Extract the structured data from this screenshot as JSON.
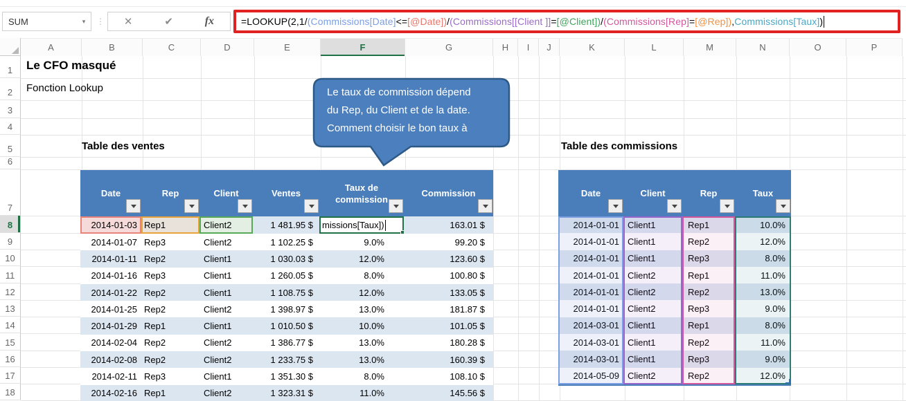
{
  "app": {
    "accent_green": "#217346",
    "header_blue": "#4A7EBA",
    "band_blue": "#DCE6F1",
    "annotation_red": "#E02322",
    "callout_blue": "#4C7FBE"
  },
  "formula_bar": {
    "name_box_value": "SUM",
    "name_box_arrow": "▾",
    "cancel_icon": "✕",
    "enter_icon": "✔",
    "insert_function_label": "fx",
    "dots_icon": "⋮",
    "segments": [
      {
        "text": "=LOOKUP(2,1/",
        "color": "#000000"
      },
      {
        "text": "(Commissions[Date]",
        "color": "#7A9FE5"
      },
      {
        "text": "<=",
        "color": "#000000"
      },
      {
        "text": "[@Date])",
        "color": "#E8776B"
      },
      {
        "text": "/",
        "color": "#000000"
      },
      {
        "text": "(Commissions[[Client ]]",
        "color": "#9C6BC9"
      },
      {
        "text": "=",
        "color": "#000000"
      },
      {
        "text": "[@Client])",
        "color": "#3FA45C"
      },
      {
        "text": "/",
        "color": "#000000"
      },
      {
        "text": "(Commissions[Rep]",
        "color": "#D4569E"
      },
      {
        "text": "=",
        "color": "#000000"
      },
      {
        "text": "[@Rep])",
        "color": "#F09241"
      },
      {
        "text": ",",
        "color": "#000000"
      },
      {
        "text": "Commissions[Taux]",
        "color": "#4BA6C5"
      },
      {
        "text": ")",
        "color": "#000000"
      }
    ]
  },
  "grid": {
    "column_headers": [
      "A",
      "B",
      "C",
      "D",
      "E",
      "F",
      "G",
      "H",
      "I",
      "J",
      "K",
      "L",
      "M",
      "N",
      "O",
      "P"
    ],
    "row_headers": [
      "1",
      "2",
      "3",
      "4",
      "5",
      "6",
      "7",
      "8",
      "9",
      "10",
      "11",
      "12",
      "13",
      "14",
      "15",
      "16",
      "17",
      "18"
    ],
    "selected_column": "F",
    "selected_row": "8"
  },
  "titles": {
    "line1": "Le CFO masqué",
    "line2": "Fonction Lookup"
  },
  "callout": {
    "lines": [
      "Le taux de commission dépend",
      "du Rep, du Client et de la date.",
      "Comment choisir le bon taux à"
    ]
  },
  "sales_table": {
    "title": "Table des ventes",
    "headers": [
      "Date",
      "Rep",
      "Client",
      "Ventes",
      "Taux de commission",
      "Commission"
    ],
    "edit_row": {
      "date": "2014-01-03",
      "rep": "Rep1",
      "client": "Client2",
      "ventes": "1 481.95 $",
      "taux_edit": "missions[Taux])",
      "commission": "163.01 $"
    },
    "rows": [
      {
        "date": "2014-01-07",
        "rep": "Rep3",
        "client": "Client2",
        "ventes": "1 102.25 $",
        "taux": "9.0%",
        "commission": "99.20 $"
      },
      {
        "date": "2014-01-11",
        "rep": "Rep2",
        "client": "Client1",
        "ventes": "1 030.03 $",
        "taux": "12.0%",
        "commission": "123.60 $"
      },
      {
        "date": "2014-01-16",
        "rep": "Rep3",
        "client": "Client1",
        "ventes": "1 260.05 $",
        "taux": "8.0%",
        "commission": "100.80 $"
      },
      {
        "date": "2014-01-22",
        "rep": "Rep2",
        "client": "Client1",
        "ventes": "1 108.75 $",
        "taux": "12.0%",
        "commission": "133.05 $"
      },
      {
        "date": "2014-01-25",
        "rep": "Rep2",
        "client": "Client2",
        "ventes": "1 398.97 $",
        "taux": "13.0%",
        "commission": "181.87 $"
      },
      {
        "date": "2014-01-29",
        "rep": "Rep1",
        "client": "Client1",
        "ventes": "1 010.50 $",
        "taux": "10.0%",
        "commission": "101.05 $"
      },
      {
        "date": "2014-02-04",
        "rep": "Rep2",
        "client": "Client2",
        "ventes": "1 386.77 $",
        "taux": "13.0%",
        "commission": "180.28 $"
      },
      {
        "date": "2014-02-08",
        "rep": "Rep2",
        "client": "Client2",
        "ventes": "1 233.75 $",
        "taux": "13.0%",
        "commission": "160.39 $"
      },
      {
        "date": "2014-02-11",
        "rep": "Rep3",
        "client": "Client1",
        "ventes": "1 351.30 $",
        "taux": "8.0%",
        "commission": "108.10 $"
      },
      {
        "date": "2014-02-16",
        "rep": "Rep1",
        "client": "Client2",
        "ventes": "1 323.31 $",
        "taux": "11.0%",
        "commission": "145.56 $"
      }
    ]
  },
  "commissions_table": {
    "title": "Table des commissions",
    "headers": [
      "Date",
      "Client",
      "Rep",
      "Taux"
    ],
    "rows": [
      {
        "date": "2014-01-01",
        "client": "Client1",
        "rep": "Rep1",
        "taux": "10.0%"
      },
      {
        "date": "2014-01-01",
        "client": "Client1",
        "rep": "Rep2",
        "taux": "12.0%"
      },
      {
        "date": "2014-01-01",
        "client": "Client1",
        "rep": "Rep3",
        "taux": "8.0%"
      },
      {
        "date": "2014-01-01",
        "client": "Client2",
        "rep": "Rep1",
        "taux": "11.0%"
      },
      {
        "date": "2014-01-01",
        "client": "Client2",
        "rep": "Rep2",
        "taux": "13.0%"
      },
      {
        "date": "2014-01-01",
        "client": "Client2",
        "rep": "Rep3",
        "taux": "9.0%"
      },
      {
        "date": "2014-03-01",
        "client": "Client1",
        "rep": "Rep1",
        "taux": "8.0%"
      },
      {
        "date": "2014-03-01",
        "client": "Client1",
        "rep": "Rep2",
        "taux": "11.0%"
      },
      {
        "date": "2014-03-01",
        "client": "Client1",
        "rep": "Rep3",
        "taux": "9.0%"
      },
      {
        "date": "2014-05-09",
        "client": "Client2",
        "rep": "Rep2",
        "taux": "12.0%"
      }
    ]
  }
}
